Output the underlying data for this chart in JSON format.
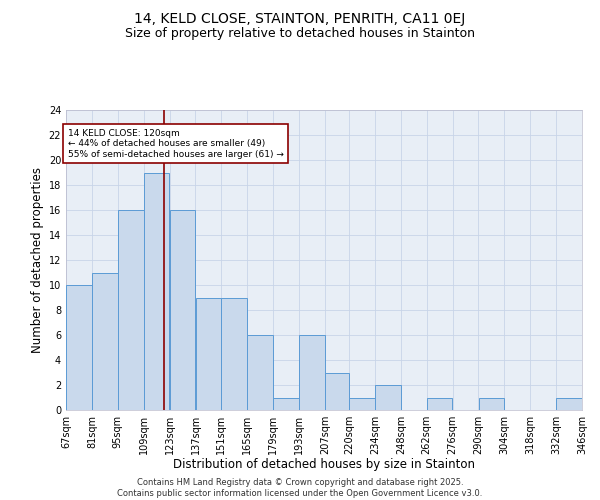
{
  "title1": "14, KELD CLOSE, STAINTON, PENRITH, CA11 0EJ",
  "title2": "Size of property relative to detached houses in Stainton",
  "xlabel": "Distribution of detached houses by size in Stainton",
  "ylabel": "Number of detached properties",
  "bin_labels": [
    "67sqm",
    "81sqm",
    "95sqm",
    "109sqm",
    "123sqm",
    "137sqm",
    "151sqm",
    "165sqm",
    "179sqm",
    "193sqm",
    "207sqm",
    "220sqm",
    "234sqm",
    "248sqm",
    "262sqm",
    "276sqm",
    "290sqm",
    "304sqm",
    "318sqm",
    "332sqm",
    "346sqm"
  ],
  "bin_edges": [
    67,
    81,
    95,
    109,
    123,
    137,
    151,
    165,
    179,
    193,
    207,
    220,
    234,
    248,
    262,
    276,
    290,
    304,
    318,
    332,
    346
  ],
  "bar_heights": [
    10,
    11,
    16,
    19,
    16,
    9,
    9,
    6,
    1,
    6,
    3,
    1,
    2,
    0,
    1,
    0,
    1,
    0,
    0,
    1
  ],
  "bar_facecolor": "#c9d9ec",
  "bar_edgecolor": "#5b9bd5",
  "property_sqm": 120,
  "property_line_color": "#8b0000",
  "annotation_text": "14 KELD CLOSE: 120sqm\n← 44% of detached houses are smaller (49)\n55% of semi-detached houses are larger (61) →",
  "annotation_box_edgecolor": "#8b0000",
  "annotation_box_facecolor": "#ffffff",
  "ylim": [
    0,
    24
  ],
  "yticks": [
    0,
    2,
    4,
    6,
    8,
    10,
    12,
    14,
    16,
    18,
    20,
    22,
    24
  ],
  "grid_color": "#c8d4e8",
  "background_color": "#e8eef6",
  "footer_text": "Contains HM Land Registry data © Crown copyright and database right 2025.\nContains public sector information licensed under the Open Government Licence v3.0.",
  "title_fontsize": 10,
  "subtitle_fontsize": 9,
  "axis_label_fontsize": 8.5,
  "tick_fontsize": 7,
  "footer_fontsize": 6
}
